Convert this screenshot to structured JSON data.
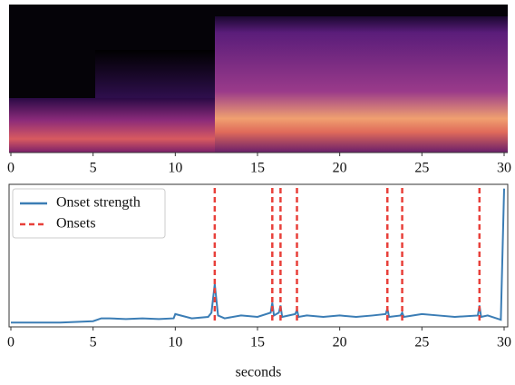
{
  "chart_data": [
    {
      "type": "spectrogram",
      "xlim": [
        0,
        30
      ],
      "xticks": [
        0,
        5,
        10,
        15,
        20,
        25,
        30
      ]
    },
    {
      "type": "line",
      "xlabel": "seconds",
      "xlim": [
        0,
        30
      ],
      "xticks": [
        0,
        5,
        10,
        15,
        20,
        25,
        30
      ],
      "ylim": [
        0,
        1
      ],
      "legend": "upper left",
      "series": [
        {
          "name": "Onset strength",
          "color": "#3b7db5",
          "x": [
            0,
            1,
            2,
            3,
            4,
            5,
            5.5,
            6,
            7,
            8,
            9,
            9.9,
            10,
            11,
            12,
            12.2,
            12.4,
            12.6,
            13,
            14,
            15,
            15.8,
            15.9,
            16.0,
            16.3,
            16.4,
            16.5,
            17.3,
            17.4,
            17.5,
            18,
            19,
            20,
            21,
            22,
            22.8,
            22.9,
            23.0,
            23.7,
            23.8,
            23.9,
            25,
            26,
            27,
            28.4,
            28.5,
            28.6,
            29,
            29.8,
            30
          ],
          "values": [
            0.03,
            0.03,
            0.03,
            0.03,
            0.035,
            0.04,
            0.06,
            0.06,
            0.055,
            0.06,
            0.055,
            0.06,
            0.09,
            0.06,
            0.07,
            0.1,
            0.3,
            0.08,
            0.06,
            0.08,
            0.07,
            0.1,
            0.17,
            0.08,
            0.1,
            0.15,
            0.07,
            0.09,
            0.12,
            0.07,
            0.08,
            0.07,
            0.08,
            0.07,
            0.08,
            0.09,
            0.13,
            0.07,
            0.08,
            0.1,
            0.07,
            0.09,
            0.08,
            0.07,
            0.08,
            0.15,
            0.07,
            0.08,
            0.05,
            0.97
          ]
        },
        {
          "name": "Onsets",
          "color": "#e8403a",
          "x": [
            12.4,
            15.9,
            16.4,
            17.4,
            22.9,
            23.8,
            28.5
          ]
        }
      ]
    }
  ]
}
